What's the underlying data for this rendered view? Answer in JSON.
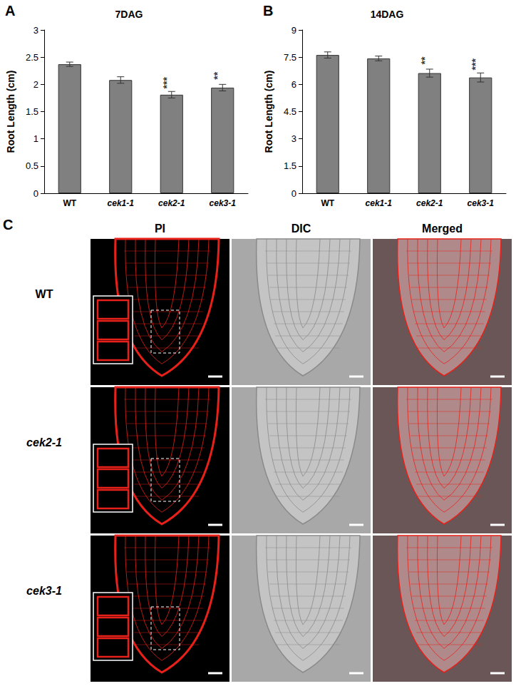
{
  "chart_data": [
    {
      "type": "bar",
      "panel": "A",
      "title": "7DAG",
      "y_label": "Root Length (cm)",
      "categories": [
        "WT",
        "cek1-1",
        "cek2-1",
        "cek3-1"
      ],
      "values": [
        2.37,
        2.08,
        1.81,
        1.94
      ],
      "errors": [
        0.04,
        0.06,
        0.06,
        0.06
      ],
      "annotations": [
        null,
        null,
        "***",
        "**"
      ],
      "color": "#808080",
      "ylim": [
        0,
        3
      ],
      "yticks": [
        0,
        0.5,
        1,
        1.5,
        2,
        2.5,
        3
      ],
      "grid": false
    },
    {
      "type": "bar",
      "panel": "B",
      "title": "14DAG",
      "y_label": "Root Length (cm)",
      "categories": [
        "WT",
        "cek1-1",
        "cek2-1",
        "cek3-1"
      ],
      "values": [
        7.62,
        7.43,
        6.62,
        6.38
      ],
      "errors": [
        0.17,
        0.13,
        0.22,
        0.25
      ],
      "annotations": [
        null,
        null,
        "**",
        "***"
      ],
      "color": "#808080",
      "ylim": [
        0,
        9
      ],
      "yticks": [
        0,
        1.5,
        3,
        4.5,
        6,
        7.5,
        9
      ],
      "grid": false
    }
  ],
  "panel_c": {
    "panel": "C",
    "columns": [
      "PI",
      "DIC",
      "Merged"
    ],
    "rows": [
      "WT",
      "cek2-1",
      "cek3-1"
    ]
  }
}
